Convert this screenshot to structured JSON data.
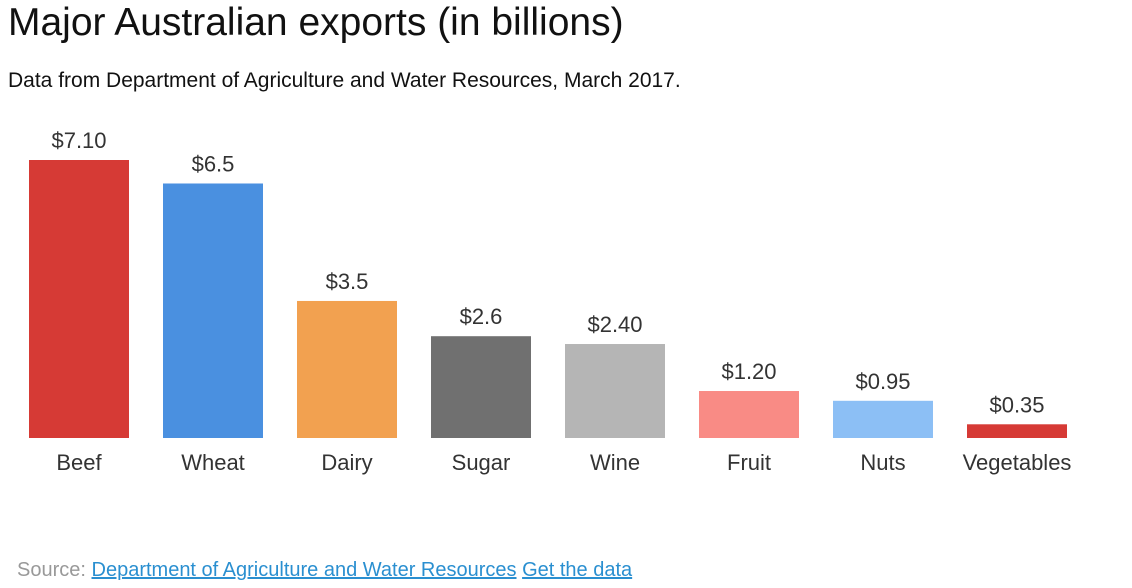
{
  "header": {
    "title": "Major Australian exports (in billions)",
    "subtitle": "Data from Department of Agriculture and Water Resources, March 2017."
  },
  "footer": {
    "source_prefix": "Source:",
    "source_link": "Department of Agriculture and Water Resources",
    "data_link": "Get the data"
  },
  "chart_data": {
    "type": "bar",
    "title": "Major Australian exports (in billions)",
    "subtitle": "Data from Department of Agriculture and Water Resources, March 2017.",
    "categories": [
      "Beef",
      "Wheat",
      "Dairy",
      "Sugar",
      "Wine",
      "Fruit",
      "Nuts",
      "Vegetables"
    ],
    "values": [
      7.1,
      6.5,
      3.5,
      2.6,
      2.4,
      1.2,
      0.95,
      0.35
    ],
    "data_labels": [
      "$7.10",
      "$6.5",
      "$3.5",
      "$2.6",
      "$2.40",
      "$1.20",
      "$0.95",
      "$0.35"
    ],
    "colors": [
      "#d63a35",
      "#4a90e0",
      "#f2a150",
      "#707070",
      "#b5b5b5",
      "#f98b85",
      "#8cbff5",
      "#d63a35"
    ],
    "xlabel": "",
    "ylabel": "",
    "ylim": [
      0,
      7.1
    ],
    "grid": false,
    "legend": "none"
  }
}
